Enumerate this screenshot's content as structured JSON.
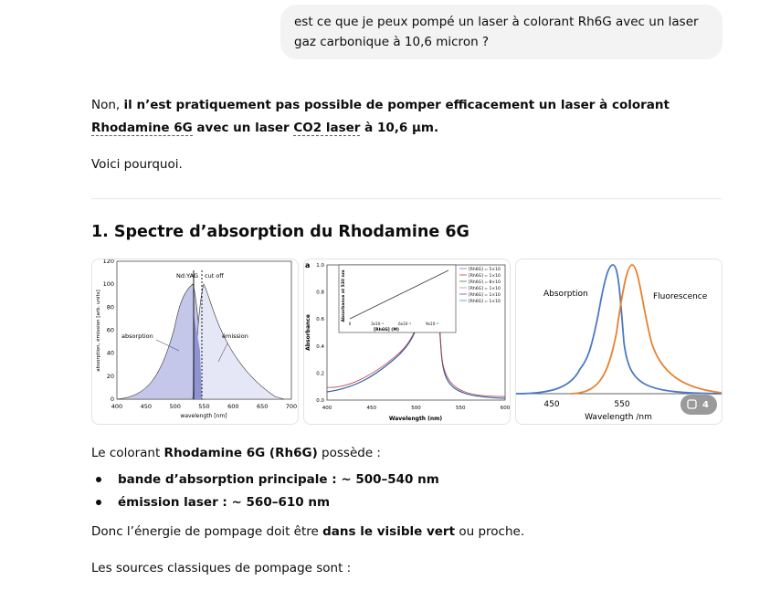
{
  "user_message": "est ce que je peux pompé un laser à colorant Rh6G avec un laser gaz carbonique à 10,6 micron ?",
  "answer": {
    "intro": {
      "prefix": "Non, ",
      "bold1": "il n’est pratiquement pas possible de pomper efficacement un laser à colorant ",
      "link1": "Rhodamine 6G",
      "bold2": " avec un laser ",
      "link2": "CO2 laser",
      "bold3": " à 10,6 µm."
    },
    "why": "Voici pourquoi.",
    "heading": "1. Spectre d’absorption du Rhodamine 6G",
    "images": [
      {
        "ylabel": "absorption, émission [arb. units]",
        "xlabel": "wavelength [nm]",
        "yticks": [
          0,
          20,
          40,
          60,
          80,
          100,
          120
        ],
        "xticks": [
          400,
          450,
          500,
          550,
          600,
          650,
          700
        ],
        "labels": [
          "Nd:YAG",
          "cut off",
          "absorption",
          "émission"
        ]
      },
      {
        "panel": "a",
        "ylabel": "Absorbance",
        "xlabel": "Wavelength (nm)",
        "yticks": [
          "0.0",
          "0.2",
          "0.4",
          "0.6",
          "0.8",
          "1.0"
        ],
        "xticks": [
          400,
          450,
          500,
          550,
          600
        ],
        "legend": [
          "[Rh6G] = 5×10",
          "[Rh6G] = 1×10",
          "[Rh6G] = 8×10",
          "[Rh6G] = 1×10",
          "[Rh6G] = 1×10",
          "[Rh6G] = 1×10"
        ],
        "inset": {
          "ylabel": "Absorbance at 530 nm",
          "xlabel": "[Rh6G] (M)",
          "xticks": [
            "0",
            "3x10⁻⁴",
            "6x10⁻⁴",
            "9x10⁻⁴"
          ]
        }
      },
      {
        "labels": [
          "Absorption",
          "Fluorescence"
        ],
        "xticks": [
          450,
          550
        ],
        "xlabel": "Wavelength /nm"
      }
    ],
    "image_count": "4",
    "colorant": {
      "prefix": "Le colorant ",
      "bold": "Rhodamine 6G (Rh6G)",
      "suffix": " possède :"
    },
    "bullets": [
      {
        "bold": "bande d’absorption principale :",
        "text": " ~ 500–540 nm"
      },
      {
        "bold": "émission laser :",
        "text": " ~ 560–610 nm"
      }
    ],
    "donc": {
      "prefix": "Donc l’énergie de pompage doit être ",
      "bold": "dans le visible vert",
      "suffix": " ou proche."
    },
    "sources": "Les sources classiques de pompage sont :"
  }
}
